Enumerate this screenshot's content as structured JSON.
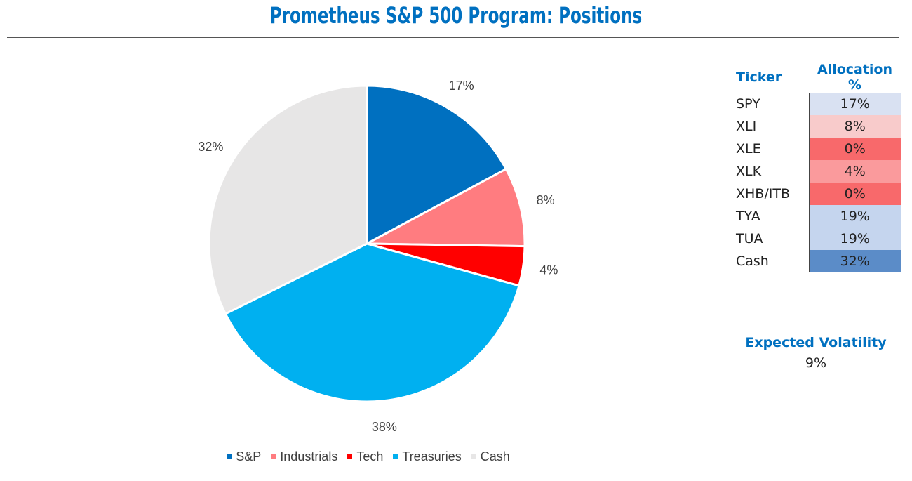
{
  "title": "Prometheus S&P 500 Program: Positions",
  "chart_data": {
    "type": "pie",
    "categories": [
      "S&P",
      "Industrials",
      "Tech",
      "Treasuries",
      "Cash"
    ],
    "values": [
      17,
      8,
      4,
      38,
      32
    ],
    "labels": [
      "17%",
      "8%",
      "4%",
      "38%",
      "32%"
    ],
    "colors": [
      "#0070c0",
      "#ff7c80",
      "#ff0000",
      "#00b0f0",
      "#e7e6e6"
    ],
    "legend_position": "bottom"
  },
  "table": {
    "headers": {
      "ticker": "Ticker",
      "allocation": "Allocation %"
    },
    "rows": [
      {
        "ticker": "SPY",
        "allocation": "17%",
        "color": "#d9e1f2"
      },
      {
        "ticker": "XLI",
        "allocation": "8%",
        "color": "#f8cbcb"
      },
      {
        "ticker": "XLE",
        "allocation": "0%",
        "color": "#f8696b"
      },
      {
        "ticker": "XLK",
        "allocation": "4%",
        "color": "#fa9a9c"
      },
      {
        "ticker": "XHB/ITB",
        "allocation": "0%",
        "color": "#f8696b"
      },
      {
        "ticker": "TYA",
        "allocation": "19%",
        "color": "#c5d5ee"
      },
      {
        "ticker": "TUA",
        "allocation": "19%",
        "color": "#c5d5ee"
      },
      {
        "ticker": "Cash",
        "allocation": "32%",
        "color": "#5b8cc8"
      }
    ]
  },
  "volatility": {
    "label": "Expected Volatility",
    "value": "9%"
  }
}
